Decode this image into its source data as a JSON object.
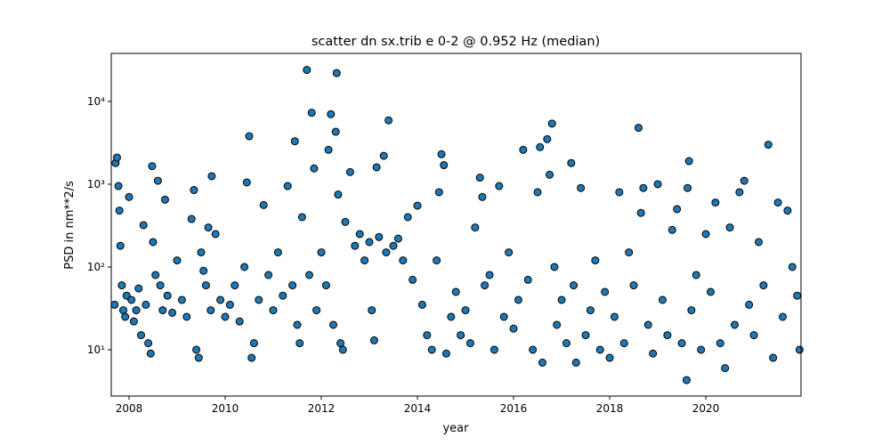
{
  "chart_data": {
    "type": "scatter",
    "title": "scatter dn sx.trib e 0-2 @ 0.952 Hz (median)",
    "xlabel": "year",
    "ylabel": "PSD in nm**2/s",
    "xlim": [
      2007.63,
      2021.98
    ],
    "xticks": [
      2008,
      2010,
      2012,
      2014,
      2016,
      2018,
      2020
    ],
    "ylim": [
      2.76,
      38000
    ],
    "ylog": true,
    "yticks": [
      {
        "value": 10,
        "label": "10¹"
      },
      {
        "value": 100,
        "label": "10²"
      },
      {
        "value": 1000,
        "label": "10³"
      },
      {
        "value": 10000,
        "label": "10⁴"
      }
    ],
    "color": "#1f77b4",
    "edgecolor": "#000000",
    "x": [
      2007.7,
      2007.72,
      2007.75,
      2007.78,
      2007.8,
      2007.82,
      2007.85,
      2007.88,
      2007.92,
      2007.95,
      2008.0,
      2008.05,
      2008.1,
      2008.15,
      2008.2,
      2008.25,
      2008.3,
      2008.35,
      2008.4,
      2008.45,
      2008.48,
      2008.5,
      2008.55,
      2008.6,
      2008.65,
      2008.7,
      2008.75,
      2008.8,
      2008.9,
      2009.0,
      2009.1,
      2009.2,
      2009.3,
      2009.35,
      2009.4,
      2009.45,
      2009.5,
      2009.55,
      2009.6,
      2009.65,
      2009.7,
      2009.72,
      2009.8,
      2009.9,
      2010.0,
      2010.1,
      2010.2,
      2010.3,
      2010.4,
      2010.45,
      2010.5,
      2010.55,
      2010.6,
      2010.7,
      2010.8,
      2010.9,
      2011.0,
      2011.1,
      2011.2,
      2011.3,
      2011.4,
      2011.45,
      2011.5,
      2011.55,
      2011.6,
      2011.7,
      2011.75,
      2011.8,
      2011.85,
      2011.9,
      2012.0,
      2012.1,
      2012.15,
      2012.2,
      2012.25,
      2012.3,
      2012.32,
      2012.35,
      2012.4,
      2012.45,
      2012.5,
      2012.6,
      2012.7,
      2012.8,
      2012.9,
      2013.0,
      2013.05,
      2013.1,
      2013.15,
      2013.2,
      2013.3,
      2013.35,
      2013.4,
      2013.5,
      2013.6,
      2013.7,
      2013.8,
      2013.9,
      2014.0,
      2014.1,
      2014.2,
      2014.3,
      2014.4,
      2014.45,
      2014.5,
      2014.55,
      2014.6,
      2014.7,
      2014.8,
      2014.9,
      2015.0,
      2015.1,
      2015.2,
      2015.3,
      2015.35,
      2015.4,
      2015.5,
      2015.6,
      2015.7,
      2015.8,
      2015.9,
      2016.0,
      2016.1,
      2016.2,
      2016.3,
      2016.4,
      2016.5,
      2016.55,
      2016.6,
      2016.7,
      2016.75,
      2016.8,
      2016.85,
      2016.9,
      2017.0,
      2017.1,
      2017.2,
      2017.25,
      2017.3,
      2017.4,
      2017.5,
      2017.6,
      2017.7,
      2017.8,
      2017.9,
      2018.0,
      2018.1,
      2018.2,
      2018.3,
      2018.4,
      2018.5,
      2018.6,
      2018.65,
      2018.7,
      2018.8,
      2018.9,
      2019.0,
      2019.1,
      2019.2,
      2019.3,
      2019.4,
      2019.5,
      2019.6,
      2019.62,
      2019.65,
      2019.7,
      2019.8,
      2019.9,
      2020.0,
      2020.1,
      2020.2,
      2020.3,
      2020.4,
      2020.5,
      2020.6,
      2020.7,
      2020.8,
      2020.9,
      2021.0,
      2021.1,
      2021.2,
      2021.3,
      2021.4,
      2021.5,
      2021.6,
      2021.7,
      2021.8,
      2021.9,
      2021.95
    ],
    "y": [
      35,
      1800,
      2100,
      950,
      480,
      180,
      60,
      30,
      25,
      45,
      700,
      40,
      22,
      30,
      55,
      15,
      320,
      35,
      12,
      9,
      1650,
      200,
      80,
      1100,
      60,
      30,
      650,
      45,
      28,
      120,
      40,
      25,
      380,
      850,
      10,
      8,
      150,
      90,
      60,
      300,
      30,
      1250,
      250,
      40,
      25,
      35,
      60,
      22,
      100,
      1050,
      3800,
      8,
      12,
      40,
      560,
      80,
      30,
      150,
      45,
      950,
      60,
      3300,
      20,
      12,
      400,
      24000,
      80,
      7300,
      1550,
      30,
      150,
      60,
      2600,
      7000,
      20,
      4300,
      22000,
      750,
      12,
      10,
      350,
      1400,
      180,
      250,
      120,
      200,
      30,
      13,
      1600,
      230,
      2200,
      150,
      5900,
      180,
      220,
      120,
      400,
      70,
      550,
      35,
      15,
      10,
      120,
      800,
      2300,
      1700,
      9,
      25,
      50,
      15,
      30,
      12,
      300,
      1200,
      700,
      60,
      80,
      10,
      950,
      25,
      150,
      18,
      40,
      2600,
      70,
      10,
      800,
      2800,
      7,
      3500,
      1300,
      5400,
      100,
      20,
      40,
      12,
      1800,
      60,
      7,
      900,
      15,
      30,
      120,
      10,
      50,
      8,
      25,
      800,
      12,
      150,
      60,
      4800,
      450,
      900,
      20,
      9,
      1000,
      40,
      15,
      280,
      500,
      12,
      4.3,
      900,
      1900,
      30,
      80,
      10,
      250,
      50,
      600,
      12,
      6,
      300,
      20,
      800,
      1100,
      35,
      15,
      200,
      60,
      3000,
      8,
      600,
      25,
      480,
      100,
      45,
      10
    ]
  }
}
